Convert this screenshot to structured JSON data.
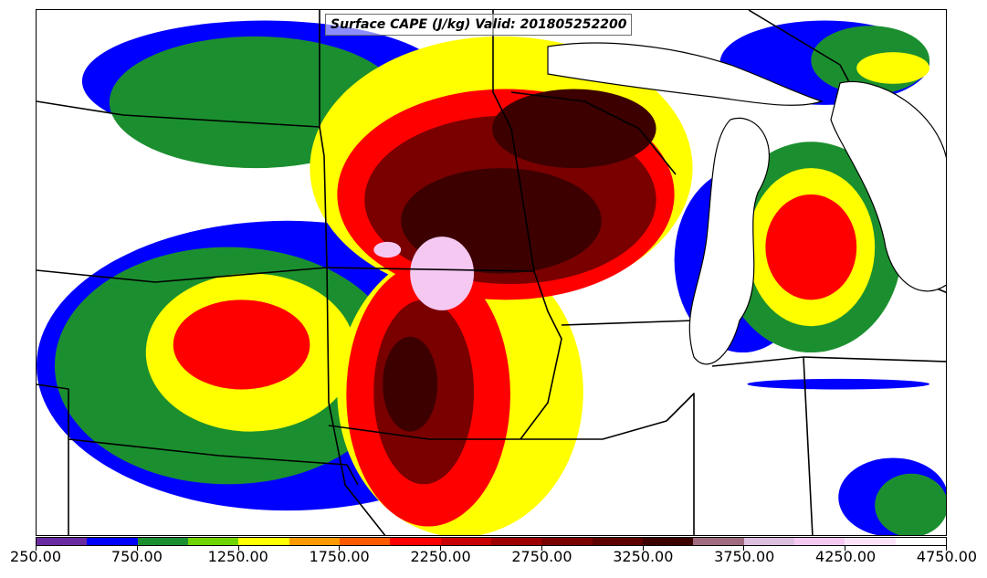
{
  "title": "Surface CAPE (J/kg) Valid: 201805252200",
  "colorbar": {
    "min": 250,
    "max": 4750,
    "step": 250,
    "colors": [
      "#6a2aa0",
      "#0000ff",
      "#1b8f2f",
      "#6fd400",
      "#ffff00",
      "#ff9a00",
      "#ff5a00",
      "#ff0000",
      "#c80000",
      "#9c0000",
      "#7a0000",
      "#5c0000",
      "#3c0000",
      "#a06b80",
      "#ddbde0",
      "#f5c8f2",
      "#fde3f8",
      "#ffffff"
    ],
    "tick_labels": [
      "250.00",
      "750.00",
      "1250.00",
      "1750.00",
      "2250.00",
      "2750.00",
      "3250.00",
      "3750.00",
      "4250.00",
      "4750.00"
    ]
  },
  "fields": [
    {
      "level": 1,
      "blobs": [
        [
          0.0,
          0.4,
          0.55,
          0.95
        ],
        [
          0.05,
          0.02,
          0.45,
          0.25
        ],
        [
          0.7,
          0.3,
          0.85,
          0.65
        ],
        [
          0.75,
          0.02,
          0.98,
          0.18
        ],
        [
          0.88,
          0.85,
          1.0,
          1.0
        ],
        [
          0.78,
          0.7,
          0.98,
          0.72
        ]
      ]
    },
    {
      "level": 2,
      "blobs": [
        [
          0.02,
          0.45,
          0.4,
          0.9
        ],
        [
          0.08,
          0.05,
          0.4,
          0.3
        ],
        [
          0.75,
          0.25,
          0.95,
          0.65
        ],
        [
          0.85,
          0.03,
          0.98,
          0.16
        ],
        [
          0.92,
          0.88,
          1.0,
          1.0
        ]
      ]
    },
    {
      "level": 4,
      "blobs": [
        [
          0.12,
          0.5,
          0.35,
          0.8
        ],
        [
          0.3,
          0.05,
          0.72,
          0.55
        ],
        [
          0.78,
          0.3,
          0.92,
          0.6
        ],
        [
          0.9,
          0.08,
          0.98,
          0.14
        ],
        [
          0.33,
          0.45,
          0.6,
          1.0
        ]
      ]
    },
    {
      "level": 7,
      "blobs": [
        [
          0.33,
          0.15,
          0.7,
          0.55
        ],
        [
          0.34,
          0.48,
          0.52,
          0.98
        ],
        [
          0.15,
          0.55,
          0.3,
          0.72
        ],
        [
          0.8,
          0.35,
          0.9,
          0.55
        ]
      ]
    },
    {
      "level": 10,
      "blobs": [
        [
          0.36,
          0.2,
          0.68,
          0.52
        ],
        [
          0.37,
          0.55,
          0.48,
          0.9
        ]
      ]
    },
    {
      "level": 12,
      "blobs": [
        [
          0.4,
          0.3,
          0.62,
          0.5
        ],
        [
          0.5,
          0.15,
          0.68,
          0.3
        ],
        [
          0.38,
          0.62,
          0.44,
          0.8
        ]
      ]
    },
    {
      "level": 15,
      "blobs": [
        [
          0.41,
          0.43,
          0.48,
          0.57
        ],
        [
          0.37,
          0.44,
          0.4,
          0.47
        ]
      ]
    }
  ]
}
